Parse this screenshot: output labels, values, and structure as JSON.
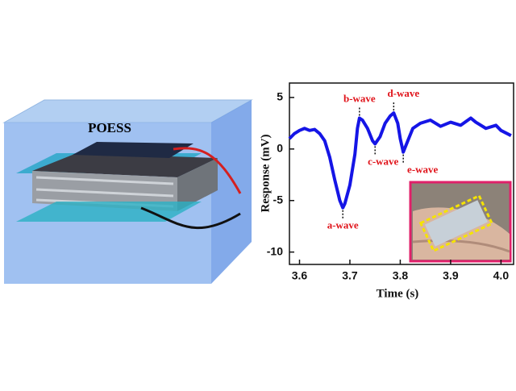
{
  "chart_data": {
    "type": "line",
    "illustration_label": "POESS",
    "xlabel": "Time (s)",
    "ylabel": "Response (mV)",
    "x": [
      3.58,
      3.59,
      3.6,
      3.61,
      3.62,
      3.63,
      3.64,
      3.65,
      3.66,
      3.67,
      3.68,
      3.686,
      3.69,
      3.7,
      3.71,
      3.715,
      3.719,
      3.725,
      3.735,
      3.745,
      3.75,
      3.76,
      3.77,
      3.78,
      3.787,
      3.795,
      3.8,
      3.806,
      3.815,
      3.825,
      3.84,
      3.86,
      3.88,
      3.9,
      3.92,
      3.94,
      3.95,
      3.97,
      3.99,
      4.0,
      4.02
    ],
    "series": [
      {
        "color": "#1515e6",
        "values": [
          1.0,
          1.5,
          1.8,
          2.0,
          1.8,
          1.9,
          1.5,
          0.8,
          -0.8,
          -3.0,
          -5.0,
          -5.7,
          -5.3,
          -3.5,
          -0.5,
          2.0,
          3.0,
          2.8,
          2.0,
          0.8,
          0.5,
          1.2,
          2.5,
          3.2,
          3.5,
          2.5,
          1.0,
          -0.3,
          0.8,
          2.0,
          2.5,
          2.8,
          2.2,
          2.6,
          2.3,
          3.0,
          2.6,
          2.0,
          2.3,
          1.8,
          1.3
        ]
      }
    ],
    "annotations": [
      "a-wave",
      "b-wave",
      "c-wave",
      "d-wave",
      "e-wave"
    ],
    "xlim": [
      3.58,
      4.025
    ],
    "ylim": [
      -11.2,
      6.4
    ],
    "xticks": [
      {
        "value": 3.6,
        "label": "3.6"
      },
      {
        "value": 3.7,
        "label": "3.7"
      },
      {
        "value": 3.8,
        "label": "3.8"
      },
      {
        "value": 3.9,
        "label": "3.9"
      },
      {
        "value": 4.0,
        "label": "4.0"
      }
    ],
    "yticks": [
      -10,
      -5,
      0,
      5
    ]
  }
}
